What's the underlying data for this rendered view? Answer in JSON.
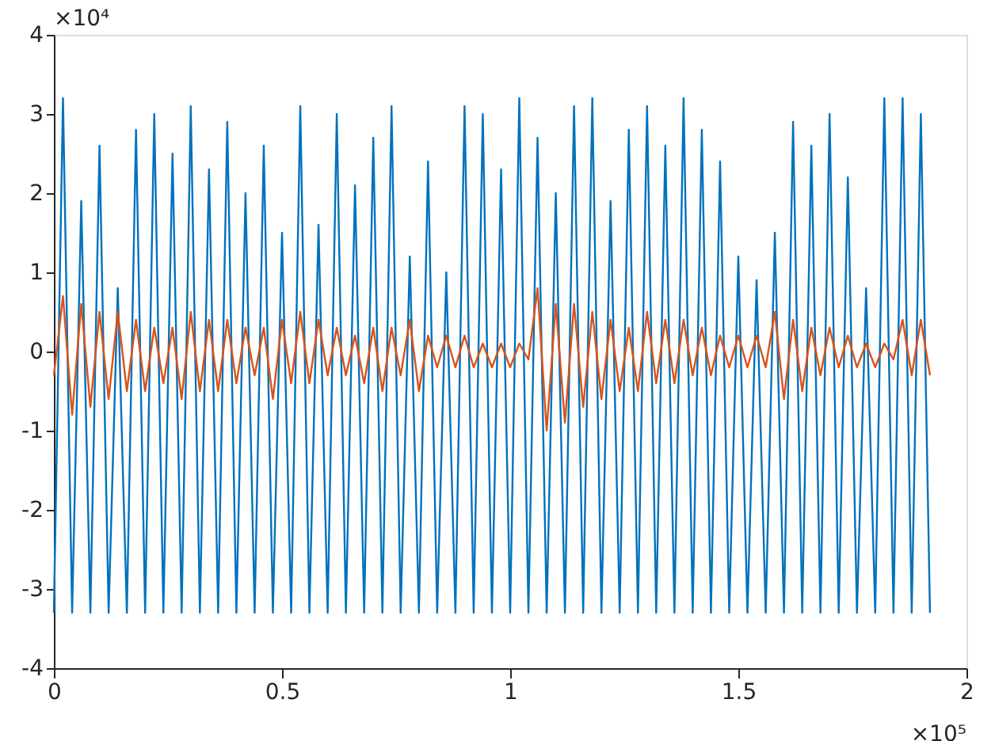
{
  "chart_data": {
    "type": "line",
    "xlim": [
      0,
      2
    ],
    "ylim": [
      -4,
      4
    ],
    "xticks": [
      0,
      0.5,
      1,
      1.5,
      2
    ],
    "yticks": [
      -4,
      -3,
      -2,
      -1,
      0,
      1,
      2,
      3,
      4
    ],
    "grid": false,
    "legend": false,
    "marker": "none",
    "line_style": "solid",
    "annotations": [
      "×10⁴",
      "×10⁵"
    ],
    "series": [
      {
        "color": "#0072bd",
        "x": [
          0,
          0.02,
          0.04,
          0.06,
          0.08,
          0.1,
          0.12,
          0.14,
          0.16,
          0.18,
          0.2,
          0.22,
          0.24,
          0.26,
          0.28,
          0.3,
          0.32,
          0.34,
          0.36,
          0.38,
          0.4,
          0.42,
          0.44,
          0.46,
          0.48,
          0.5,
          0.52,
          0.54,
          0.56,
          0.58,
          0.6,
          0.62,
          0.64,
          0.66,
          0.68,
          0.7,
          0.72,
          0.74,
          0.76,
          0.78,
          0.8,
          0.82,
          0.84,
          0.86,
          0.88,
          0.9,
          0.92,
          0.94,
          0.96,
          0.98,
          1,
          1.02,
          1.04,
          1.06,
          1.08,
          1.1,
          1.12,
          1.14,
          1.16,
          1.18,
          1.2,
          1.22,
          1.24,
          1.26,
          1.28,
          1.3,
          1.32,
          1.34,
          1.36,
          1.38,
          1.4,
          1.42,
          1.44,
          1.46,
          1.48,
          1.5,
          1.52,
          1.54,
          1.56,
          1.58,
          1.6,
          1.62,
          1.64,
          1.66,
          1.68,
          1.7,
          1.72,
          1.74,
          1.76,
          1.78,
          1.8,
          1.82,
          1.84,
          1.86,
          1.88,
          1.9,
          1.92
        ],
        "values": [
          -3.3,
          3.2,
          -3.3,
          1.9,
          -3.3,
          2.6,
          -3.3,
          0.8,
          -3.3,
          2.8,
          -3.3,
          3.0,
          -3.3,
          2.5,
          -3.3,
          3.1,
          -3.3,
          2.3,
          -3.3,
          2.9,
          -3.3,
          2.0,
          -3.3,
          2.6,
          -3.3,
          1.5,
          -3.3,
          3.1,
          -3.3,
          1.6,
          -3.3,
          3.0,
          -3.3,
          2.1,
          -3.3,
          2.7,
          -3.3,
          3.1,
          -3.3,
          1.2,
          -3.3,
          2.4,
          -3.3,
          1.0,
          -3.3,
          3.1,
          -3.3,
          3.0,
          -3.3,
          2.3,
          -3.3,
          3.2,
          -3.3,
          2.7,
          -3.3,
          2.0,
          -3.3,
          3.1,
          -3.3,
          3.2,
          -3.3,
          1.9,
          -3.3,
          2.8,
          -3.3,
          3.1,
          -3.3,
          2.6,
          -3.3,
          3.2,
          -3.3,
          2.8,
          -3.3,
          2.4,
          -3.3,
          1.2,
          -3.3,
          0.9,
          -3.3,
          1.5,
          -3.3,
          2.9,
          -3.3,
          2.6,
          -3.3,
          3.0,
          -3.3,
          2.2,
          -3.3,
          0.8,
          -3.3,
          3.2,
          -3.3,
          3.2,
          -3.3,
          3.0,
          -3.3
        ]
      },
      {
        "color": "#d95319",
        "x": [
          0,
          0.02,
          0.04,
          0.06,
          0.08,
          0.1,
          0.12,
          0.14,
          0.16,
          0.18,
          0.2,
          0.22,
          0.24,
          0.26,
          0.28,
          0.3,
          0.32,
          0.34,
          0.36,
          0.38,
          0.4,
          0.42,
          0.44,
          0.46,
          0.48,
          0.5,
          0.52,
          0.54,
          0.56,
          0.58,
          0.6,
          0.62,
          0.64,
          0.66,
          0.68,
          0.7,
          0.72,
          0.74,
          0.76,
          0.78,
          0.8,
          0.82,
          0.84,
          0.86,
          0.88,
          0.9,
          0.92,
          0.94,
          0.96,
          0.98,
          1,
          1.02,
          1.04,
          1.06,
          1.08,
          1.1,
          1.12,
          1.14,
          1.16,
          1.18,
          1.2,
          1.22,
          1.24,
          1.26,
          1.28,
          1.3,
          1.32,
          1.34,
          1.36,
          1.38,
          1.4,
          1.42,
          1.44,
          1.46,
          1.48,
          1.5,
          1.52,
          1.54,
          1.56,
          1.58,
          1.6,
          1.62,
          1.64,
          1.66,
          1.68,
          1.7,
          1.72,
          1.74,
          1.76,
          1.78,
          1.8,
          1.82,
          1.84,
          1.86,
          1.88,
          1.9,
          1.92
        ],
        "values": [
          -0.3,
          0.7,
          -0.8,
          0.6,
          -0.7,
          0.5,
          -0.6,
          0.5,
          -0.5,
          0.4,
          -0.5,
          0.3,
          -0.4,
          0.3,
          -0.6,
          0.5,
          -0.5,
          0.4,
          -0.5,
          0.4,
          -0.4,
          0.3,
          -0.3,
          0.3,
          -0.6,
          0.4,
          -0.4,
          0.5,
          -0.4,
          0.4,
          -0.3,
          0.3,
          -0.3,
          0.2,
          -0.4,
          0.3,
          -0.5,
          0.3,
          -0.3,
          0.4,
          -0.5,
          0.2,
          -0.2,
          0.2,
          -0.2,
          0.2,
          -0.2,
          0.1,
          -0.2,
          0.1,
          -0.2,
          0.1,
          -0.1,
          0.8,
          -1.0,
          0.6,
          -0.9,
          0.6,
          -0.7,
          0.5,
          -0.6,
          0.4,
          -0.5,
          0.3,
          -0.5,
          0.5,
          -0.4,
          0.4,
          -0.4,
          0.4,
          -0.3,
          0.3,
          -0.3,
          0.2,
          -0.2,
          0.2,
          -0.2,
          0.2,
          -0.2,
          0.5,
          -0.6,
          0.4,
          -0.5,
          0.3,
          -0.3,
          0.3,
          -0.2,
          0.2,
          -0.2,
          0.1,
          -0.2,
          0.1,
          -0.1,
          0.4,
          -0.3,
          0.4,
          -0.3
        ]
      }
    ]
  }
}
